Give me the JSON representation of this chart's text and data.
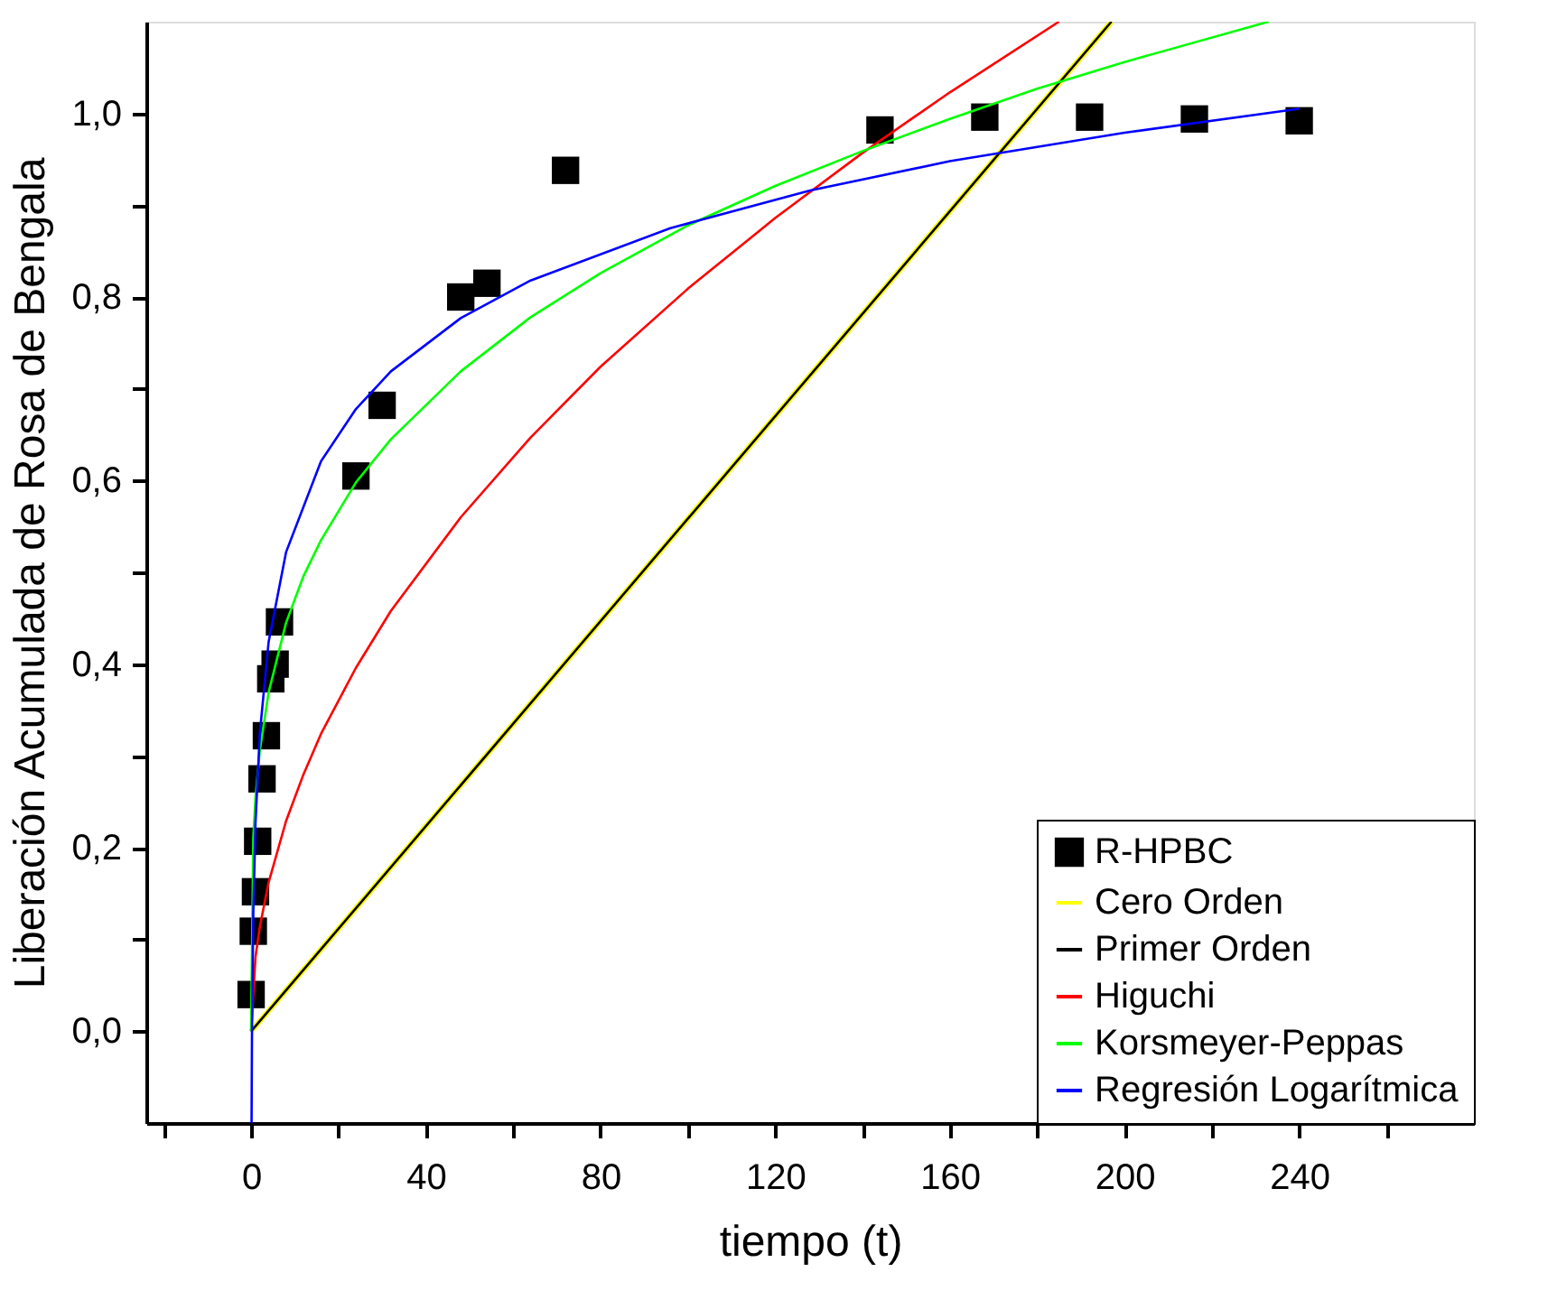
{
  "chart_data": {
    "type": "scatter",
    "xlabel": "tiempo (t)",
    "ylabel": "Liberación Acumulada de Rosa de Bengala",
    "xlim": [
      -24,
      280
    ],
    "ylim": [
      -0.1,
      1.1
    ],
    "xticks": [
      {
        "value": -20,
        "label": null
      },
      0,
      {
        "value": 20,
        "label": null
      },
      40,
      {
        "value": 60,
        "label": null
      },
      80,
      {
        "value": 100,
        "label": null
      },
      120,
      {
        "value": 140,
        "label": null
      },
      160,
      {
        "value": 180,
        "label": null
      },
      200,
      {
        "value": 220,
        "label": null
      },
      240,
      {
        "value": 260,
        "label": null
      }
    ],
    "yticks": [
      {
        "value": 0,
        "label": "0,0"
      },
      {
        "value": 0.1,
        "label": null
      },
      {
        "value": 0.2,
        "label": "0,2"
      },
      {
        "value": 0.3,
        "label": null
      },
      {
        "value": 0.4,
        "label": "0,4"
      },
      {
        "value": 0.5,
        "label": null
      },
      {
        "value": 0.6,
        "label": "0,6"
      },
      {
        "value": 0.7,
        "label": null
      },
      {
        "value": 0.8,
        "label": "0,8"
      },
      {
        "value": 0.9,
        "label": null
      },
      {
        "value": 1.0,
        "label": "1,0"
      }
    ],
    "grid": false,
    "legend": "bottom right",
    "series": [
      {
        "name": "R-HPBC",
        "marker": "square",
        "color": "#000000",
        "x": [
          0,
          0.5,
          1,
          1.5,
          2.5,
          3.5,
          4.5,
          5.5,
          6.5,
          24,
          30,
          48,
          54,
          72,
          144,
          168,
          192,
          216,
          240
        ],
        "values": [
          0.04,
          0.109,
          0.152,
          0.207,
          0.275,
          0.322,
          0.384,
          0.4,
          0.446,
          0.605,
          0.682,
          0.8,
          0.815,
          0.938,
          0.982,
          0.996,
          0.996,
          0.994,
          0.992
        ]
      },
      {
        "name": "Cero Orden",
        "type": "line",
        "color": "#ffff00",
        "x": [
          0,
          197
        ],
        "values": [
          0.0,
          1.1
        ]
      },
      {
        "name": "Primer Orden",
        "type": "line",
        "color": "#000000",
        "x": [
          0,
          197
        ],
        "values": [
          0.0,
          1.1
        ]
      },
      {
        "name": "Higuchi",
        "type": "line",
        "color": "#ff0000",
        "x": [
          0,
          1,
          2,
          4,
          8,
          12,
          16,
          24,
          32,
          48,
          64,
          80,
          100,
          120,
          140,
          160,
          185
        ],
        "values": [
          0,
          0.081,
          0.114,
          0.162,
          0.229,
          0.28,
          0.324,
          0.396,
          0.458,
          0.56,
          0.647,
          0.724,
          0.809,
          0.886,
          0.957,
          1.023,
          1.1
        ]
      },
      {
        "name": "Korsmeyer-Peppas",
        "type": "line",
        "color": "#00ff00",
        "x": [
          0,
          0.5,
          1,
          2,
          4,
          8,
          12,
          16,
          24,
          32,
          48,
          64,
          80,
          100,
          120,
          140,
          160,
          180,
          200,
          233
        ],
        "values": [
          0,
          0.211,
          0.254,
          0.306,
          0.369,
          0.445,
          0.496,
          0.535,
          0.598,
          0.645,
          0.719,
          0.778,
          0.826,
          0.878,
          0.921,
          0.959,
          0.994,
          1.027,
          1.056,
          1.1
        ]
      },
      {
        "name": "Regresión Logarítmica",
        "type": "line",
        "color": "#0000ff",
        "x": [
          0.1,
          0.2,
          0.5,
          1,
          2,
          4,
          8,
          16,
          24,
          32,
          48,
          64,
          96,
          128,
          160,
          200,
          240
        ],
        "values": [
          -0.1,
          -0.001,
          0.129,
          0.227,
          0.325,
          0.424,
          0.522,
          0.621,
          0.678,
          0.719,
          0.777,
          0.818,
          0.875,
          0.916,
          0.948,
          0.979,
          1.005
        ]
      }
    ]
  }
}
